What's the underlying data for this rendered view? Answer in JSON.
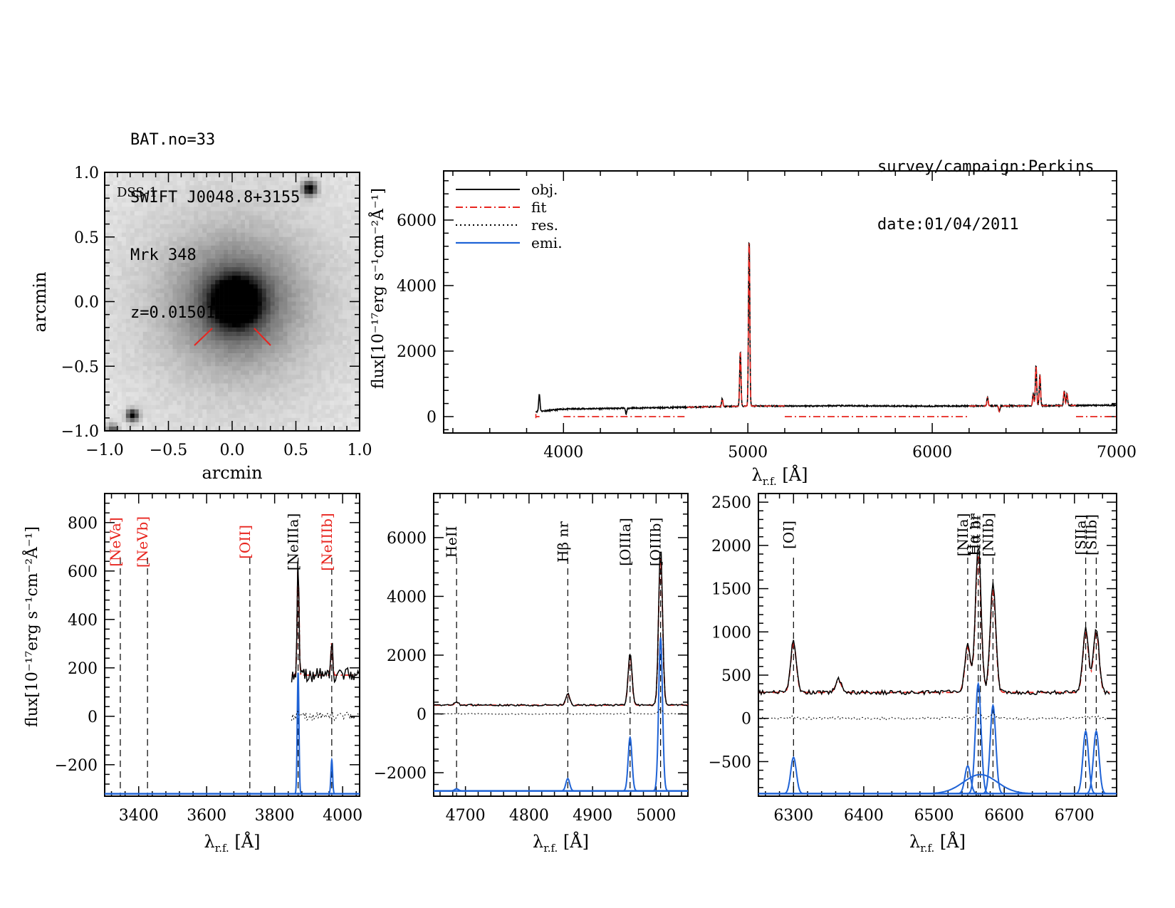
{
  "header": {
    "lines": [
      "BAT.no=33",
      "SWIFT J0048.8+3155",
      "Mrk 348",
      "z=0.01501"
    ],
    "survey": "survey/campaign:Perkins",
    "date": "date:01/04/2011"
  },
  "image_panel": {
    "label": "DSS-1",
    "xlabel": "arcmin",
    "ylabel": "arcmin",
    "xticks": [
      "−1.0",
      "−0.5",
      "0.0",
      "0.5",
      "1.0"
    ],
    "yticks": [
      "1.0",
      "0.5",
      "0.0",
      "−0.5",
      "−1.0"
    ]
  },
  "axis_labels": {
    "wavelength": "λr.f. [Å]",
    "flux": "flux[10⁻¹⁷erg s⁻¹cm⁻²Å⁻¹]"
  },
  "chart_data": [
    {
      "type": "line",
      "panel": "full-spectrum",
      "xlim": [
        3350,
        7000
      ],
      "ylim": [
        -500,
        7500
      ],
      "xticks": [
        4000,
        5000,
        6000,
        7000
      ],
      "yticks": [
        0,
        2000,
        4000,
        6000
      ],
      "legend": {
        "placement": "top-left",
        "entries": [
          "obj.",
          "fit",
          "res.",
          "emi."
        ]
      },
      "series": [
        {
          "name": "obj.",
          "color": "#000000",
          "style": "solid",
          "continuum": [
            [
              3850,
              150
            ],
            [
              4000,
              230
            ],
            [
              4500,
              270
            ],
            [
              5000,
              320
            ],
            [
              5500,
              330
            ],
            [
              6000,
              320
            ],
            [
              6500,
              330
            ],
            [
              7000,
              350
            ]
          ],
          "lines": [
            [
              3869,
              700
            ],
            [
              4340,
              80
            ],
            [
              4861,
              550
            ],
            [
              4959,
              2000
            ],
            [
              5007,
              5500
            ],
            [
              6300,
              600
            ],
            [
              6364,
              150
            ],
            [
              6548,
              700
            ],
            [
              6563,
              1600
            ],
            [
              6584,
              1300
            ],
            [
              6716,
              800
            ],
            [
              6731,
              700
            ]
          ]
        },
        {
          "name": "fit",
          "color": "#e8251f",
          "style": "dashdot",
          "segments": [
            [
              3850,
              3870
            ],
            [
              4000,
              4670
            ],
            [
              5200,
              6200
            ],
            [
              6780,
              7000
            ]
          ]
        }
      ]
    },
    {
      "type": "line",
      "panel": "NeV-OII-NeIII",
      "xlim": [
        3300,
        4050
      ],
      "ylim": [
        -330,
        920
      ],
      "xticks": [
        3400,
        3600,
        3800,
        4000
      ],
      "yticks": [
        -200,
        0,
        200,
        400,
        600,
        800
      ],
      "line_markers": [
        {
          "label": "[NeVa]",
          "x": 3346,
          "color": "#e8251f"
        },
        {
          "label": "[NeVb]",
          "x": 3426,
          "color": "#e8251f"
        },
        {
          "label": "[OII]",
          "x": 3727,
          "color": "#e8251f"
        },
        {
          "label": "[NeIIIa]",
          "x": 3869,
          "color": "#000000"
        },
        {
          "label": "[NeIIIb]",
          "x": 3968,
          "color": "#e8251f"
        }
      ],
      "obj_peaks": [
        [
          3869,
          660
        ],
        [
          3968,
          320
        ]
      ],
      "emi_peaks": [
        [
          3869,
          180
        ],
        [
          3968,
          -180
        ]
      ]
    },
    {
      "type": "line",
      "panel": "Hbeta-OIII",
      "xlim": [
        4650,
        5050
      ],
      "ylim": [
        -2800,
        7500
      ],
      "xticks": [
        4700,
        4800,
        4900,
        5000
      ],
      "yticks": [
        -2000,
        0,
        2000,
        4000,
        6000
      ],
      "line_markers": [
        {
          "label": "HeII",
          "x": 4686,
          "color": "#000000"
        },
        {
          "label": "Hβ nr",
          "x": 4861,
          "color": "#000000"
        },
        {
          "label": "[OIIIa]",
          "x": 4959,
          "color": "#000000"
        },
        {
          "label": "[OIIIb]",
          "x": 5007,
          "color": "#000000"
        }
      ],
      "obj_peaks": [
        [
          4686,
          400
        ],
        [
          4861,
          700
        ],
        [
          4959,
          2100
        ],
        [
          5007,
          5800
        ]
      ],
      "emi_peaks": [
        [
          4686,
          -2550
        ],
        [
          4861,
          -2200
        ],
        [
          4959,
          -800
        ],
        [
          5007,
          2600
        ]
      ]
    },
    {
      "type": "line",
      "panel": "Halpha-NII-SII",
      "xlim": [
        6250,
        6760
      ],
      "ylim": [
        -900,
        2600
      ],
      "xticks": [
        6300,
        6400,
        6500,
        6600,
        6700
      ],
      "yticks": [
        -500,
        0,
        500,
        1000,
        1500,
        2000,
        2500
      ],
      "line_markers": [
        {
          "label": "[OI]",
          "x": 6300,
          "color": "#000000"
        },
        {
          "label": "[NIIa]",
          "x": 6548,
          "color": "#000000"
        },
        {
          "label": "Hα nr",
          "x": 6563,
          "color": "#000000"
        },
        {
          "label": "Hα br",
          "x": 6566,
          "color": "#000000"
        },
        {
          "label": "[NIIb]",
          "x": 6584,
          "color": "#000000"
        },
        {
          "label": "[SIIa]",
          "x": 6716,
          "color": "#000000"
        },
        {
          "label": "[SIIb]",
          "x": 6731,
          "color": "#000000"
        }
      ],
      "obj_peaks": [
        [
          6300,
          900
        ],
        [
          6364,
          450
        ],
        [
          6548,
          850
        ],
        [
          6563,
          2000
        ],
        [
          6584,
          1550
        ],
        [
          6716,
          1050
        ],
        [
          6731,
          1050
        ]
      ],
      "emi_peaks": [
        [
          6300,
          -450
        ],
        [
          6548,
          -550
        ],
        [
          6563,
          400
        ],
        [
          6584,
          150
        ],
        [
          6716,
          -150
        ],
        [
          6731,
          -150
        ]
      ],
      "broad_component": {
        "center": 6566,
        "peak": -650
      }
    }
  ]
}
